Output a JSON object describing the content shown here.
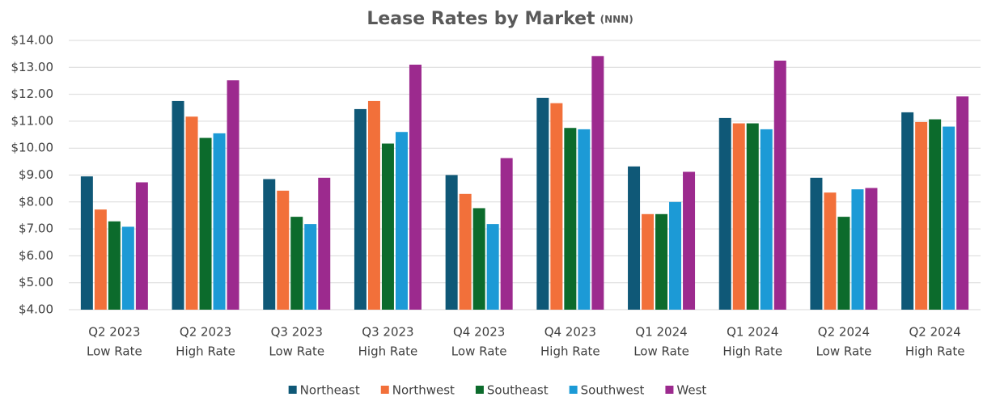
{
  "chart_data": {
    "type": "bar",
    "title": "Lease Rates by Market",
    "title_suffix": "(NNN)",
    "categories": [
      [
        "Q2 2023",
        "Low Rate"
      ],
      [
        "Q2 2023",
        "High Rate"
      ],
      [
        "Q3 2023",
        "Low Rate"
      ],
      [
        "Q3 2023",
        "High Rate"
      ],
      [
        "Q4 2023",
        "Low Rate"
      ],
      [
        "Q4 2023",
        "High Rate"
      ],
      [
        "Q1 2024",
        "Low Rate"
      ],
      [
        "Q1 2024",
        "High Rate"
      ],
      [
        "Q2 2024",
        "Low Rate"
      ],
      [
        "Q2 2024",
        "High Rate"
      ]
    ],
    "series": [
      {
        "name": "Northeast",
        "color": "#0f5877",
        "values": [
          8.95,
          11.75,
          8.85,
          11.45,
          9.0,
          11.87,
          9.32,
          11.12,
          8.9,
          11.33
        ]
      },
      {
        "name": "Northwest",
        "color": "#f2703a",
        "values": [
          7.72,
          11.17,
          8.42,
          11.75,
          8.3,
          11.67,
          7.55,
          10.92,
          8.35,
          10.97
        ]
      },
      {
        "name": "Southeast",
        "color": "#0c6b2c",
        "values": [
          7.28,
          10.38,
          7.45,
          10.17,
          7.77,
          10.75,
          7.55,
          10.92,
          7.45,
          11.07
        ]
      },
      {
        "name": "Southwest",
        "color": "#1c9ad6",
        "values": [
          7.08,
          10.55,
          7.18,
          10.6,
          7.18,
          10.7,
          8.0,
          10.7,
          8.47,
          10.8
        ]
      },
      {
        "name": "West",
        "color": "#9c2a8e",
        "values": [
          8.73,
          12.52,
          8.9,
          13.1,
          9.63,
          13.42,
          9.12,
          13.25,
          8.52,
          11.92
        ]
      }
    ],
    "ylim": [
      4,
      14
    ],
    "yticks": [
      {
        "value": 4,
        "label": "$4.00"
      },
      {
        "value": 5,
        "label": "$5.00"
      },
      {
        "value": 6,
        "label": "$6.00"
      },
      {
        "value": 7,
        "label": "$7.00"
      },
      {
        "value": 8,
        "label": "$8.00"
      },
      {
        "value": 9,
        "label": "$9.00"
      },
      {
        "value": 10,
        "label": "$10.00"
      },
      {
        "value": 11,
        "label": "$11.00"
      },
      {
        "value": 12,
        "label": "$12.00"
      },
      {
        "value": 13,
        "label": "$13.00"
      },
      {
        "value": 14,
        "label": "$14.00"
      }
    ],
    "grid": true,
    "legend": "bottom"
  }
}
